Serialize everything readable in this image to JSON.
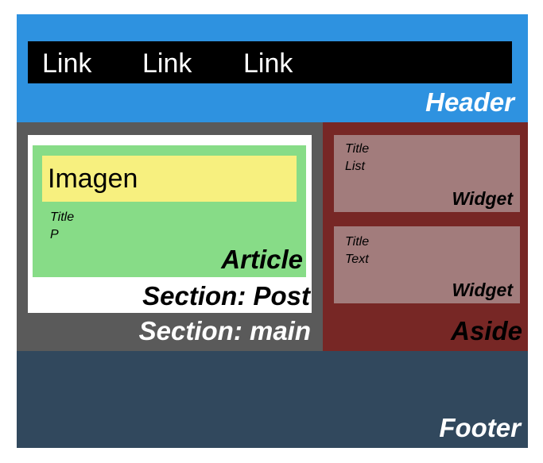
{
  "header": {
    "label": "Header",
    "nav_links": [
      "Link",
      "Link",
      "Link"
    ]
  },
  "main": {
    "label": "Section: main",
    "post": {
      "label": "Section: Post",
      "article": {
        "label": "Article",
        "image_label": "Imagen",
        "title": "Title",
        "paragraph": "P"
      }
    }
  },
  "aside": {
    "label": "Aside",
    "widgets": [
      {
        "label": "Widget",
        "line1": "Title",
        "line2": "List"
      },
      {
        "label": "Widget",
        "line1": "Title",
        "line2": "Text"
      }
    ]
  },
  "footer": {
    "label": "Footer"
  },
  "colors": {
    "header": "#2e92e0",
    "nav": "#000000",
    "main": "#5a5a5a",
    "post": "#ffffff",
    "article": "#87dc87",
    "image": "#f7f07f",
    "aside": "#772725",
    "widget": "#a27c7c",
    "footer": "#31485d"
  }
}
